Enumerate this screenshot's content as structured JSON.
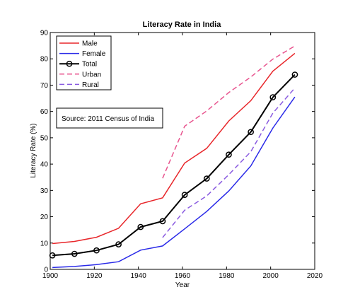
{
  "chart_data": {
    "type": "line",
    "title": "Literacy Rate in India",
    "xlabel": "Year",
    "ylabel": "Literacy Rate (%)",
    "xlim": [
      1900,
      2020
    ],
    "ylim": [
      0,
      90
    ],
    "xticks": [
      1900,
      1920,
      1940,
      1960,
      1980,
      2000,
      2020
    ],
    "yticks": [
      0,
      10,
      20,
      30,
      40,
      50,
      60,
      70,
      80,
      90
    ],
    "grid": false,
    "legend_position": "top-left",
    "annotation": "Source: 2011 Census of India",
    "series": [
      {
        "name": "Male",
        "color": "#e8262a",
        "dash": "solid",
        "marker": "none",
        "x": [
          1901,
          1911,
          1921,
          1931,
          1941,
          1951,
          1961,
          1971,
          1981,
          1991,
          2001,
          2011
        ],
        "values": [
          9.8,
          10.6,
          12.2,
          15.6,
          24.9,
          27.2,
          40.4,
          46.0,
          56.4,
          64.1,
          75.3,
          82.1
        ]
      },
      {
        "name": "Female",
        "color": "#2a2ae8",
        "dash": "solid",
        "marker": "none",
        "x": [
          1901,
          1911,
          1921,
          1931,
          1941,
          1951,
          1961,
          1971,
          1981,
          1991,
          2001,
          2011
        ],
        "values": [
          0.7,
          1.1,
          1.8,
          2.9,
          7.3,
          8.9,
          15.4,
          22.0,
          29.8,
          39.3,
          53.7,
          65.5
        ]
      },
      {
        "name": "Total",
        "color": "#000000",
        "dash": "solid",
        "marker": "circle",
        "x": [
          1901,
          1911,
          1921,
          1931,
          1941,
          1951,
          1961,
          1971,
          1981,
          1991,
          2001,
          2011
        ],
        "values": [
          5.3,
          5.9,
          7.2,
          9.5,
          16.1,
          18.3,
          28.3,
          34.5,
          43.6,
          52.2,
          65.4,
          74.0
        ]
      },
      {
        "name": "Urban",
        "color": "#e8558f",
        "dash": "dashed",
        "marker": "none",
        "x": [
          1951,
          1961,
          1971,
          1981,
          1991,
          2001,
          2011
        ],
        "values": [
          34.6,
          54.4,
          60.2,
          67.2,
          73.1,
          79.9,
          84.9
        ]
      },
      {
        "name": "Rural",
        "color": "#8a5be0",
        "dash": "dashed",
        "marker": "none",
        "x": [
          1951,
          1961,
          1971,
          1981,
          1991,
          2001,
          2011
        ],
        "values": [
          12.1,
          22.5,
          27.9,
          36.0,
          44.7,
          59.4,
          68.9
        ]
      }
    ]
  }
}
